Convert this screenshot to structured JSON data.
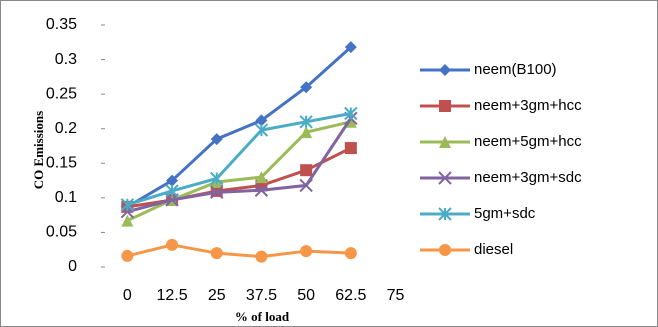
{
  "chart_data": {
    "type": "line",
    "x_label": "% of load",
    "y_label": "CO Emissions",
    "categories": [
      "0",
      "12.5",
      "25",
      "37.5",
      "50",
      "62.5",
      "75"
    ],
    "ylim": [
      0,
      0.35
    ],
    "yticks": [
      0,
      0.05,
      0.1,
      0.15,
      0.2,
      0.25,
      0.3,
      0.35
    ],
    "grid": false,
    "legend": "right",
    "series": [
      {
        "name": "neem(B100)",
        "color": "#4472c4",
        "marker": "diamond",
        "values": [
          0.087,
          0.125,
          0.185,
          0.212,
          0.26,
          0.318,
          null
        ]
      },
      {
        "name": "neem+3gm+hcc",
        "color": "#c0504d",
        "marker": "square",
        "values": [
          0.087,
          0.097,
          0.11,
          0.118,
          0.14,
          0.172,
          null
        ]
      },
      {
        "name": "neem+5gm+hcc",
        "color": "#9bbb59",
        "marker": "triangle",
        "values": [
          0.067,
          0.097,
          0.123,
          0.13,
          0.195,
          0.21,
          null
        ]
      },
      {
        "name": "neem+3gm+sdc",
        "color": "#8064a2",
        "marker": "x",
        "values": [
          0.08,
          0.097,
          0.108,
          0.111,
          0.118,
          0.215,
          null
        ]
      },
      {
        "name": "5gm+sdc",
        "color": "#4bacc6",
        "marker": "star",
        "values": [
          0.09,
          0.11,
          0.128,
          0.198,
          0.21,
          0.222,
          null
        ]
      },
      {
        "name": "diesel",
        "color": "#f79646",
        "marker": "circle",
        "values": [
          0.016,
          0.032,
          0.02,
          0.015,
          0.023,
          0.02,
          null
        ]
      }
    ]
  }
}
